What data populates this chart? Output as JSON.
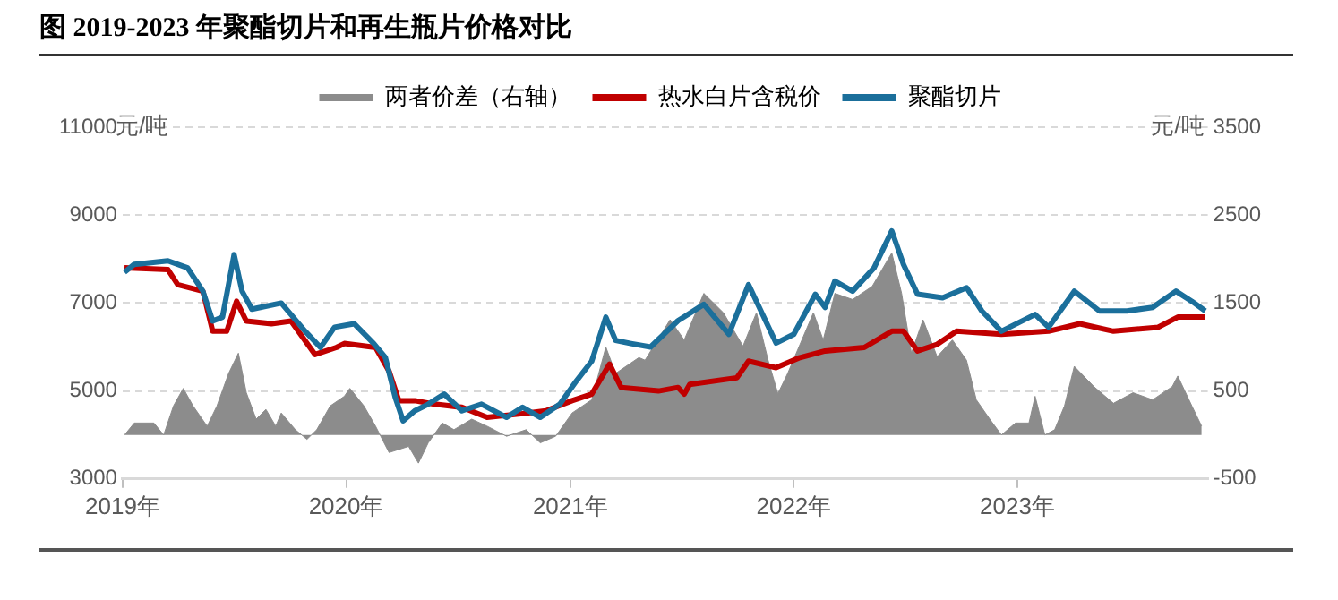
{
  "chart_data": {
    "type": "line",
    "title": "图   2019-2023 年聚酯切片和再生瓶片价格对比",
    "ylabel": "元/吨",
    "y2label": "元/吨",
    "xlim": [
      "2019-01-01",
      "2023-11-08"
    ],
    "xticks": [
      {
        "value": "2019-01-01",
        "label": "2019年"
      },
      {
        "value": "2020-01-01",
        "label": "2020年"
      },
      {
        "value": "2021-01-01",
        "label": "2021年"
      },
      {
        "value": "2022-01-01",
        "label": "2022年"
      },
      {
        "value": "2023-01-01",
        "label": "2023年"
      }
    ],
    "ylim": [
      3000,
      11000
    ],
    "yticks": [
      3000,
      5000,
      7000,
      9000,
      11000
    ],
    "y2lim": [
      -500,
      3500
    ],
    "y2ticks": [
      -500,
      500,
      1500,
      2500,
      3500
    ],
    "grid": "y",
    "legend": "top",
    "marker": "none",
    "line_style": "solid",
    "series": [
      {
        "name": "两者价差（右轴）",
        "type": "area",
        "axis": "y2",
        "color": "#8c8c8c",
        "x": [
          "2019-01-04",
          "2019-01-20",
          "2019-02-21",
          "2019-03-09",
          "2019-03-25",
          "2019-04-10",
          "2019-04-26",
          "2019-05-19",
          "2019-06-04",
          "2019-06-23",
          "2019-07-09",
          "2019-07-22",
          "2019-08-07",
          "2019-08-23",
          "2019-09-08",
          "2019-09-17",
          "2019-10-10",
          "2019-10-29",
          "2019-11-14",
          "2019-12-06",
          "2019-12-29",
          "2020-01-07",
          "2020-01-30",
          "2020-02-18",
          "2020-03-11",
          "2020-04-12",
          "2020-04-28",
          "2020-05-14",
          "2020-06-06",
          "2020-06-25",
          "2020-07-24",
          "2020-08-18",
          "2020-09-19",
          "2020-10-21",
          "2020-11-13",
          "2020-12-08",
          "2021-01-04",
          "2021-02-05",
          "2021-02-28",
          "2021-03-16",
          "2021-04-23",
          "2021-05-03",
          "2021-06-13",
          "2021-07-06",
          "2021-08-07",
          "2021-09-08",
          "2021-10-10",
          "2021-11-01",
          "2021-11-20",
          "2021-12-06",
          "2021-12-22",
          "2022-02-02",
          "2022-02-18",
          "2022-03-09",
          "2022-04-07",
          "2022-05-09",
          "2022-06-10",
          "2022-06-26",
          "2022-07-12",
          "2022-07-31",
          "2022-08-23",
          "2022-09-17",
          "2022-10-10",
          "2022-10-26",
          "2022-11-17",
          "2022-12-06",
          "2022-12-29",
          "2023-01-20",
          "2023-01-30",
          "2023-02-15",
          "2023-03-03",
          "2023-03-19",
          "2023-04-04",
          "2023-05-06",
          "2023-06-07",
          "2023-07-09",
          "2023-08-10",
          "2023-09-11",
          "2023-09-20",
          "2023-10-13",
          "2023-10-29"
        ],
        "values": [
          0,
          136,
          136,
          0,
          330,
          530,
          330,
          100,
          330,
          700,
          930,
          480,
          180,
          290,
          100,
          250,
          60,
          -50,
          60,
          330,
          440,
          530,
          330,
          100,
          -200,
          -130,
          -320,
          -90,
          136,
          60,
          180,
          100,
          -15,
          60,
          -90,
          -15,
          250,
          400,
          1000,
          700,
          880,
          850,
          1310,
          1080,
          1610,
          1390,
          1010,
          1390,
          850,
          470,
          700,
          1390,
          1080,
          1610,
          1540,
          1690,
          2070,
          1610,
          930,
          1310,
          890,
          1080,
          850,
          400,
          180,
          0,
          136,
          136,
          440,
          0,
          60,
          330,
          780,
          550,
          360,
          480,
          400,
          550,
          670,
          330,
          100
        ]
      },
      {
        "name": "热水白片含税价",
        "color": "#c00000",
        "x": [
          "2019-01-04",
          "2019-03-16",
          "2019-04-01",
          "2019-05-12",
          "2019-05-28",
          "2019-06-20",
          "2019-07-06",
          "2019-07-22",
          "2019-09-01",
          "2019-10-03",
          "2019-11-11",
          "2019-12-16",
          "2019-12-29",
          "2020-02-18",
          "2020-03-11",
          "2020-03-27",
          "2020-04-22",
          "2020-05-24",
          "2020-07-08",
          "2020-08-18",
          "2020-10-12",
          "2020-11-22",
          "2021-01-04",
          "2021-02-05",
          "2021-03-06",
          "2021-03-25",
          "2021-05-25",
          "2021-06-26",
          "2021-07-06",
          "2021-07-15",
          "2021-09-30",
          "2021-10-19",
          "2021-12-03",
          "2022-01-11",
          "2022-02-21",
          "2022-04-26",
          "2022-06-10",
          "2022-06-29",
          "2022-07-22",
          "2022-08-23",
          "2022-09-24",
          "2022-12-06",
          "2023-02-21",
          "2023-04-13",
          "2023-06-07",
          "2023-08-19",
          "2023-09-20",
          "2023-11-04"
        ],
        "values": [
          7800,
          7760,
          7420,
          7270,
          6360,
          6360,
          7040,
          6590,
          6530,
          6590,
          5830,
          5990,
          6080,
          5990,
          5450,
          4780,
          4780,
          4700,
          4630,
          4400,
          4480,
          4550,
          4780,
          4930,
          5610,
          5080,
          5000,
          5080,
          4930,
          5150,
          5300,
          5680,
          5530,
          5760,
          5910,
          5990,
          6360,
          6360,
          5910,
          6060,
          6360,
          6290,
          6360,
          6530,
          6360,
          6450,
          6680,
          6680
        ]
      },
      {
        "name": "聚酯切片",
        "color": "#1b6f9b",
        "x": [
          "2019-01-04",
          "2019-01-20",
          "2019-03-16",
          "2019-04-17",
          "2019-05-12",
          "2019-05-28",
          "2019-06-13",
          "2019-07-02",
          "2019-07-15",
          "2019-07-31",
          "2019-09-17",
          "2019-10-26",
          "2019-11-20",
          "2019-12-13",
          "2020-01-14",
          "2020-02-15",
          "2020-03-05",
          "2020-03-21",
          "2020-04-03",
          "2020-04-22",
          "2020-05-14",
          "2020-06-09",
          "2020-07-08",
          "2020-08-09",
          "2020-09-19",
          "2020-10-15",
          "2020-11-13",
          "2020-12-15",
          "2021-01-11",
          "2021-02-05",
          "2021-02-28",
          "2021-03-16",
          "2021-04-10",
          "2021-05-12",
          "2021-06-26",
          "2021-08-07",
          "2021-09-17",
          "2021-10-19",
          "2021-12-03",
          "2022-01-01",
          "2022-02-05",
          "2022-02-21",
          "2022-03-09",
          "2022-04-07",
          "2022-05-12",
          "2022-06-10",
          "2022-06-29",
          "2022-07-22",
          "2022-09-01",
          "2022-10-10",
          "2022-11-04",
          "2022-12-06",
          "2023-01-30",
          "2023-02-21",
          "2023-04-04",
          "2023-05-15",
          "2023-06-29",
          "2023-08-10",
          "2023-09-17",
          "2023-10-13",
          "2023-11-04"
        ],
        "values": [
          7700,
          7880,
          7960,
          7800,
          7270,
          6590,
          6680,
          8100,
          7270,
          6860,
          7000,
          6360,
          5990,
          6450,
          6530,
          6080,
          5760,
          4860,
          4320,
          4550,
          4700,
          4930,
          4550,
          4700,
          4400,
          4630,
          4400,
          4700,
          5230,
          5680,
          6680,
          6150,
          6080,
          6000,
          6600,
          6970,
          6290,
          7420,
          6090,
          6290,
          7200,
          6900,
          7500,
          7270,
          7800,
          8640,
          7880,
          7200,
          7120,
          7350,
          6820,
          6360,
          6740,
          6450,
          7270,
          6820,
          6820,
          6900,
          7270,
          7040,
          6820
        ]
      }
    ]
  }
}
